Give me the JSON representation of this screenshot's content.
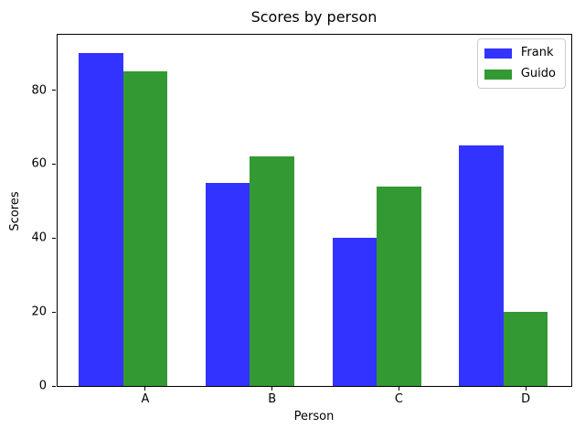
{
  "chart_data": {
    "type": "bar",
    "title": "Scores by person",
    "xlabel": "Person",
    "ylabel": "Scores",
    "categories": [
      "A",
      "B",
      "C",
      "D"
    ],
    "series": [
      {
        "name": "Frank",
        "color": "#3333ff",
        "values": [
          90,
          55,
          40,
          65
        ]
      },
      {
        "name": "Guido",
        "color": "#339933",
        "values": [
          85,
          62,
          54,
          20
        ]
      }
    ],
    "ylim": [
      0,
      95
    ],
    "yticks": [
      0,
      20,
      40,
      60,
      80
    ],
    "grid": false,
    "legend_position": "upper right",
    "bar_width_fraction": 0.35
  }
}
